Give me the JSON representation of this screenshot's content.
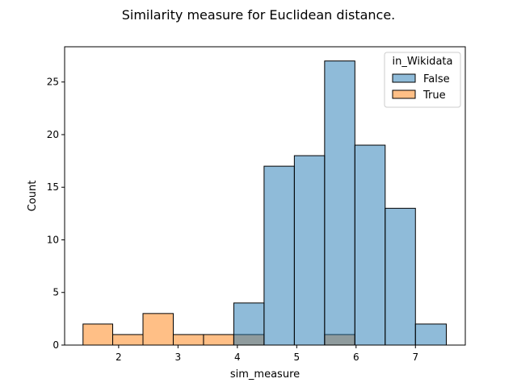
{
  "chart_data": {
    "type": "bar",
    "title": "Similarity measure for Euclidean distance.",
    "xlabel": "sim_measure",
    "ylabel": "Count",
    "xlim": [
      1.09,
      7.84
    ],
    "ylim": [
      0,
      28.35
    ],
    "x_ticks": [
      2,
      3,
      4,
      5,
      6,
      7
    ],
    "y_ticks": [
      0,
      5,
      10,
      15,
      20,
      25
    ],
    "grid": false,
    "legend": {
      "title": "in_Wikidata",
      "placement": "top-right"
    },
    "bin_edges": [
      1.4,
      1.9,
      2.41,
      2.92,
      3.43,
      3.94,
      4.45,
      4.96,
      5.47,
      5.98,
      6.49,
      7.0,
      7.52
    ],
    "series": [
      {
        "name": "False",
        "color": "#1f77b4",
        "values": [
          0,
          0,
          0,
          0,
          0,
          4,
          17,
          18,
          27,
          19,
          13,
          2
        ]
      },
      {
        "name": "True",
        "color": "#ff7f0e",
        "values": [
          2,
          1,
          3,
          1,
          1,
          1,
          0,
          0,
          1,
          0,
          0,
          0
        ]
      }
    ]
  }
}
